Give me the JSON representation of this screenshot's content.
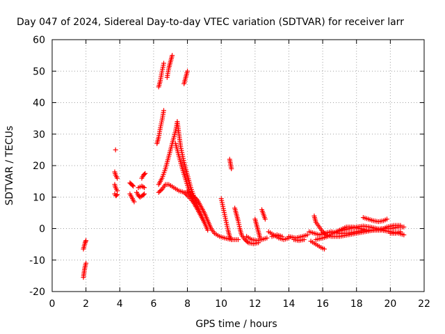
{
  "chart_data": {
    "type": "scatter",
    "title": "Day 047 of 2024, Sidereal Day-to-day VTEC variation (SDTVAR) for receiver larr",
    "xlabel": "GPS time / hours",
    "ylabel": "SDTVAR / TECUs",
    "xlim": [
      0,
      22
    ],
    "ylim": [
      -20,
      60
    ],
    "xticks": [
      "0",
      "2",
      "4",
      "6",
      "8",
      "10",
      "12",
      "14",
      "16",
      "18",
      "20",
      "22"
    ],
    "yticks": [
      "-20",
      "-10",
      "0",
      "10",
      "20",
      "30",
      "40",
      "50",
      "60"
    ],
    "grid": true,
    "marker": "+",
    "color": "#ff0000",
    "tracks": [
      {
        "name": "t01",
        "points": [
          [
            1.85,
            -15.5
          ],
          [
            1.9,
            -13.5
          ],
          [
            1.95,
            -12
          ],
          [
            2.0,
            -11
          ]
        ]
      },
      {
        "name": "t02",
        "points": [
          [
            1.85,
            -6.5
          ],
          [
            1.9,
            -5.5
          ],
          [
            1.95,
            -4.5
          ],
          [
            2.0,
            -3.8
          ]
        ]
      },
      {
        "name": "t03",
        "points": [
          [
            3.75,
            25
          ]
        ]
      },
      {
        "name": "t04",
        "points": [
          [
            3.7,
            18
          ],
          [
            3.75,
            17
          ],
          [
            3.8,
            16.5
          ],
          [
            3.85,
            16
          ]
        ]
      },
      {
        "name": "t05",
        "points": [
          [
            3.7,
            14
          ],
          [
            3.75,
            13
          ],
          [
            3.8,
            12.5
          ],
          [
            3.85,
            12
          ]
        ]
      },
      {
        "name": "t06",
        "points": [
          [
            3.7,
            11
          ],
          [
            3.75,
            10.5
          ],
          [
            3.8,
            10.5
          ],
          [
            3.85,
            10.8
          ]
        ]
      },
      {
        "name": "t07",
        "points": [
          [
            4.6,
            14.5
          ],
          [
            4.7,
            14
          ],
          [
            4.8,
            13.5
          ]
        ]
      },
      {
        "name": "t08",
        "points": [
          [
            4.6,
            11
          ],
          [
            4.7,
            10
          ],
          [
            4.8,
            9
          ],
          [
            4.85,
            8.5
          ]
        ]
      },
      {
        "name": "t09",
        "points": [
          [
            5.1,
            13
          ],
          [
            5.3,
            13.5
          ],
          [
            5.45,
            13
          ]
        ]
      },
      {
        "name": "t10",
        "points": [
          [
            5.0,
            11.5
          ],
          [
            5.1,
            10.5
          ],
          [
            5.2,
            10
          ],
          [
            5.35,
            10.5
          ],
          [
            5.45,
            11
          ]
        ]
      },
      {
        "name": "t11",
        "points": [
          [
            5.3,
            16
          ],
          [
            5.4,
            17
          ],
          [
            5.5,
            17.5
          ]
        ]
      },
      {
        "name": "t12",
        "points": [
          [
            6.3,
            45
          ],
          [
            6.4,
            47
          ],
          [
            6.5,
            50
          ],
          [
            6.6,
            52.5
          ]
        ]
      },
      {
        "name": "t13",
        "points": [
          [
            6.8,
            48
          ],
          [
            6.9,
            51
          ],
          [
            7.0,
            53
          ],
          [
            7.1,
            55
          ]
        ]
      },
      {
        "name": "t14",
        "points": [
          [
            7.8,
            46
          ],
          [
            7.9,
            48
          ],
          [
            8.0,
            50
          ]
        ]
      },
      {
        "name": "t15",
        "points": [
          [
            6.2,
            27
          ],
          [
            6.3,
            29
          ],
          [
            6.4,
            32
          ],
          [
            6.5,
            34.5
          ],
          [
            6.6,
            37.5
          ]
        ]
      },
      {
        "name": "t16",
        "points": [
          [
            6.3,
            14
          ],
          [
            6.5,
            16
          ],
          [
            6.7,
            19
          ],
          [
            6.9,
            23
          ],
          [
            7.1,
            27
          ],
          [
            7.3,
            31
          ],
          [
            7.4,
            34
          ],
          [
            7.5,
            30
          ],
          [
            7.6,
            26
          ],
          [
            7.8,
            21
          ],
          [
            8.0,
            17
          ],
          [
            8.2,
            13
          ],
          [
            8.4,
            10
          ],
          [
            8.6,
            7
          ],
          [
            8.8,
            4.5
          ],
          [
            9.0,
            2
          ],
          [
            9.2,
            -0.5
          ]
        ]
      },
      {
        "name": "t17",
        "points": [
          [
            6.3,
            11.5
          ],
          [
            6.5,
            12.5
          ],
          [
            6.7,
            14
          ],
          [
            6.9,
            14
          ],
          [
            7.2,
            13
          ],
          [
            7.5,
            12
          ],
          [
            7.8,
            11.5
          ],
          [
            8.1,
            10
          ],
          [
            8.4,
            8
          ],
          [
            8.6,
            6
          ],
          [
            8.8,
            4
          ],
          [
            9.0,
            2
          ]
        ]
      },
      {
        "name": "t18",
        "points": [
          [
            7.3,
            27
          ],
          [
            7.5,
            23
          ],
          [
            7.7,
            19
          ],
          [
            7.9,
            15.5
          ],
          [
            8.1,
            12
          ],
          [
            8.3,
            9
          ],
          [
            8.5,
            7
          ]
        ]
      },
      {
        "name": "t19",
        "points": [
          [
            8.0,
            12
          ],
          [
            8.3,
            10.5
          ],
          [
            8.6,
            9
          ],
          [
            8.8,
            7
          ],
          [
            9.0,
            5
          ],
          [
            9.2,
            2.5
          ],
          [
            9.4,
            0
          ],
          [
            9.6,
            -1.5
          ],
          [
            9.9,
            -2.5
          ],
          [
            10.2,
            -3
          ],
          [
            10.6,
            -3.5
          ],
          [
            11.0,
            -3.5
          ]
        ]
      },
      {
        "name": "t20",
        "points": [
          [
            10.0,
            9.5
          ],
          [
            10.1,
            7
          ],
          [
            10.2,
            4.5
          ],
          [
            10.3,
            2
          ],
          [
            10.4,
            -0.5
          ],
          [
            10.5,
            -2.5
          ],
          [
            10.6,
            -3.5
          ]
        ]
      },
      {
        "name": "t21",
        "points": [
          [
            10.5,
            22
          ],
          [
            10.55,
            20.5
          ],
          [
            10.6,
            19
          ]
        ]
      },
      {
        "name": "t22",
        "points": [
          [
            10.8,
            6.5
          ],
          [
            10.9,
            4.5
          ],
          [
            11.0,
            2.5
          ],
          [
            11.1,
            0
          ],
          [
            11.2,
            -2
          ],
          [
            11.4,
            -3.5
          ],
          [
            11.6,
            -4.5
          ],
          [
            11.9,
            -4.8
          ],
          [
            12.2,
            -4.5
          ]
        ]
      },
      {
        "name": "t23",
        "points": [
          [
            11.5,
            -2.5
          ],
          [
            11.8,
            -3.5
          ],
          [
            12.1,
            -3.8
          ],
          [
            12.4,
            -3.5
          ],
          [
            12.7,
            -3
          ]
        ]
      },
      {
        "name": "t24",
        "points": [
          [
            12.0,
            3
          ],
          [
            12.1,
            1
          ],
          [
            12.2,
            -1
          ],
          [
            12.3,
            -3
          ]
        ]
      },
      {
        "name": "t25",
        "points": [
          [
            12.4,
            6
          ],
          [
            12.5,
            4.5
          ],
          [
            12.6,
            3
          ]
        ]
      },
      {
        "name": "t26",
        "points": [
          [
            12.8,
            -1
          ],
          [
            13.1,
            -2
          ],
          [
            13.4,
            -3
          ],
          [
            13.7,
            -3.5
          ],
          [
            14.0,
            -3
          ]
        ]
      },
      {
        "name": "t27",
        "points": [
          [
            13.0,
            -2.5
          ],
          [
            13.3,
            -2
          ],
          [
            13.6,
            -2.5
          ]
        ]
      },
      {
        "name": "t28",
        "points": [
          [
            14.0,
            -2.5
          ],
          [
            14.4,
            -3
          ],
          [
            14.8,
            -2.5
          ],
          [
            15.1,
            -2
          ]
        ]
      },
      {
        "name": "t29",
        "points": [
          [
            14.3,
            -3.5
          ],
          [
            14.6,
            -3.8
          ],
          [
            14.9,
            -3.5
          ]
        ]
      },
      {
        "name": "t30",
        "points": [
          [
            15.2,
            -1
          ],
          [
            15.5,
            -1.5
          ],
          [
            15.8,
            -2
          ],
          [
            16.1,
            -1.5
          ],
          [
            16.5,
            -1
          ],
          [
            17.0,
            -1.5
          ],
          [
            17.5,
            -1.5
          ],
          [
            18.0,
            -1
          ],
          [
            18.5,
            -0.5
          ],
          [
            19.0,
            -0.5
          ],
          [
            19.5,
            0
          ],
          [
            20.0,
            0
          ],
          [
            20.5,
            0.5
          ],
          [
            20.8,
            0.5
          ]
        ]
      },
      {
        "name": "t31",
        "points": [
          [
            15.5,
            4
          ],
          [
            15.6,
            2
          ],
          [
            15.8,
            0.5
          ],
          [
            16.0,
            -1
          ],
          [
            16.2,
            -2
          ],
          [
            16.5,
            -2.5
          ],
          [
            17.0,
            -2.5
          ],
          [
            17.5,
            -2
          ],
          [
            18.0,
            -1.5
          ],
          [
            18.5,
            -1
          ],
          [
            19.0,
            -0.5
          ],
          [
            19.5,
            -0.5
          ],
          [
            20.0,
            -1
          ],
          [
            20.5,
            -1.5
          ],
          [
            20.8,
            -2
          ]
        ]
      },
      {
        "name": "t32",
        "points": [
          [
            15.3,
            -4
          ],
          [
            15.6,
            -5
          ],
          [
            15.9,
            -6
          ],
          [
            16.1,
            -6.5
          ]
        ]
      },
      {
        "name": "t33",
        "points": [
          [
            15.6,
            -3.5
          ],
          [
            16.0,
            -3
          ],
          [
            16.3,
            -2.5
          ],
          [
            16.6,
            -1.5
          ],
          [
            17.0,
            -0.5
          ],
          [
            17.4,
            0.5
          ],
          [
            17.8,
            0.5
          ],
          [
            18.2,
            0
          ],
          [
            18.6,
            -0.5
          ],
          [
            19.0,
            -0.5
          ],
          [
            19.4,
            -0.5
          ],
          [
            19.8,
            0.5
          ],
          [
            20.2,
            1
          ],
          [
            20.6,
            1
          ]
        ]
      },
      {
        "name": "t34",
        "points": [
          [
            16.8,
            -1
          ],
          [
            17.2,
            -0.5
          ],
          [
            17.6,
            0
          ],
          [
            18.0,
            0.5
          ],
          [
            18.4,
            0.8
          ],
          [
            18.8,
            0.5
          ],
          [
            19.2,
            0
          ],
          [
            19.6,
            -0.5
          ]
        ]
      },
      {
        "name": "t35",
        "points": [
          [
            18.4,
            3.5
          ],
          [
            18.7,
            3
          ],
          [
            19.0,
            2.5
          ],
          [
            19.3,
            2.2
          ],
          [
            19.6,
            2.5
          ],
          [
            19.8,
            3
          ]
        ]
      },
      {
        "name": "t36",
        "points": [
          [
            20.0,
            -1.5
          ],
          [
            20.3,
            -1.5
          ],
          [
            20.6,
            -1
          ]
        ]
      }
    ]
  }
}
